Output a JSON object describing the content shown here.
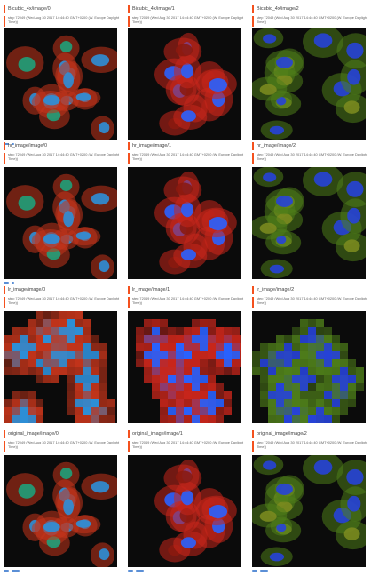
{
  "cards": [
    {
      "title": "Bicubic_4x/image/0",
      "subtitle": "step 72049 (Wed Aug 30 2017 14:44:40 GMT+0200 (W. Europe Daylight Time))",
      "palette": [
        "#c4351b",
        "#2d8fd8",
        "#1fa07a"
      ]
    },
    {
      "title": "Bicubic_4x/image/1",
      "subtitle": "step 72049 (Wed Aug 30 2017 14:44:40 GMT+0200 (W. Europe Daylight Time))",
      "palette": [
        "#c8261b",
        "#2a62ff",
        "#8b1a10"
      ]
    },
    {
      "title": "Bicubic_4x/image/2",
      "subtitle": "step 72049 (Wed Aug 30 2017 14:44:40 GMT+0200 (W. Europe Daylight Time))",
      "palette": [
        "#4e7d1a",
        "#2743d8",
        "#7a8a1f"
      ]
    },
    {
      "title": "hr_image/image/0",
      "subtitle": "step 72049 (Wed Aug 30 2017 14:44:40 GMT+0200 (W. Europe Daylight Time))",
      "palette": [
        "#c4351b",
        "#2d8fd8",
        "#1fa07a"
      ]
    },
    {
      "title": "hr_image/image/1",
      "subtitle": "step 72049 (Wed Aug 30 2017 14:44:40 GMT+0200 (W. Europe Daylight Time))",
      "palette": [
        "#c8261b",
        "#2a62ff",
        "#8b1a10"
      ]
    },
    {
      "title": "hr_image/image/2",
      "subtitle": "step 72049 (Wed Aug 30 2017 14:44:40 GMT+0200 (W. Europe Daylight Time))",
      "palette": [
        "#4e7d1a",
        "#2743d8",
        "#7a8a1f"
      ]
    },
    {
      "title": "lr_image/image/0",
      "subtitle": "step 72049 (Wed Aug 30 2017 14:44:40 GMT+0200 (W. Europe Daylight Time))",
      "palette": [
        "#c4351b",
        "#2d8fd8",
        "#1fa07a"
      ]
    },
    {
      "title": "lr_image/image/1",
      "subtitle": "step 72049 (Wed Aug 30 2017 14:44:40 GMT+0200 (W. Europe Daylight Time))",
      "palette": [
        "#c8261b",
        "#2a62ff",
        "#8b1a10"
      ]
    },
    {
      "title": "lr_image/image/2",
      "subtitle": "step 72049 (Wed Aug 30 2017 14:44:40 GMT+0200 (W. Europe Daylight Time))",
      "palette": [
        "#4e7d1a",
        "#2743d8",
        "#7a8a1f"
      ]
    },
    {
      "title": "original_image/image/0",
      "subtitle": "step 72049 (Wed Aug 30 2017 14:44:40 GMT+0200 (W. Europe Daylight Time))",
      "palette": [
        "#c4351b",
        "#2d8fd8",
        "#1fa07a"
      ]
    },
    {
      "title": "original_image/image/1",
      "subtitle": "step 72049 (Wed Aug 30 2017 14:44:40 GMT+0200 (W. Europe Daylight Time))",
      "palette": [
        "#c8261b",
        "#2a62ff",
        "#8b1a10"
      ]
    },
    {
      "title": "original_image/image/2",
      "subtitle": "step 72049 (Wed Aug 30 2017 14:44:40 GMT+0200 (W. Europe Daylight Time))",
      "palette": [
        "#4e7d1a",
        "#2743d8",
        "#7a8a1f"
      ]
    }
  ],
  "colors": {
    "accent": "#f4511e",
    "control": "#5b8fd6",
    "image_bg": "#0b0b0b"
  }
}
